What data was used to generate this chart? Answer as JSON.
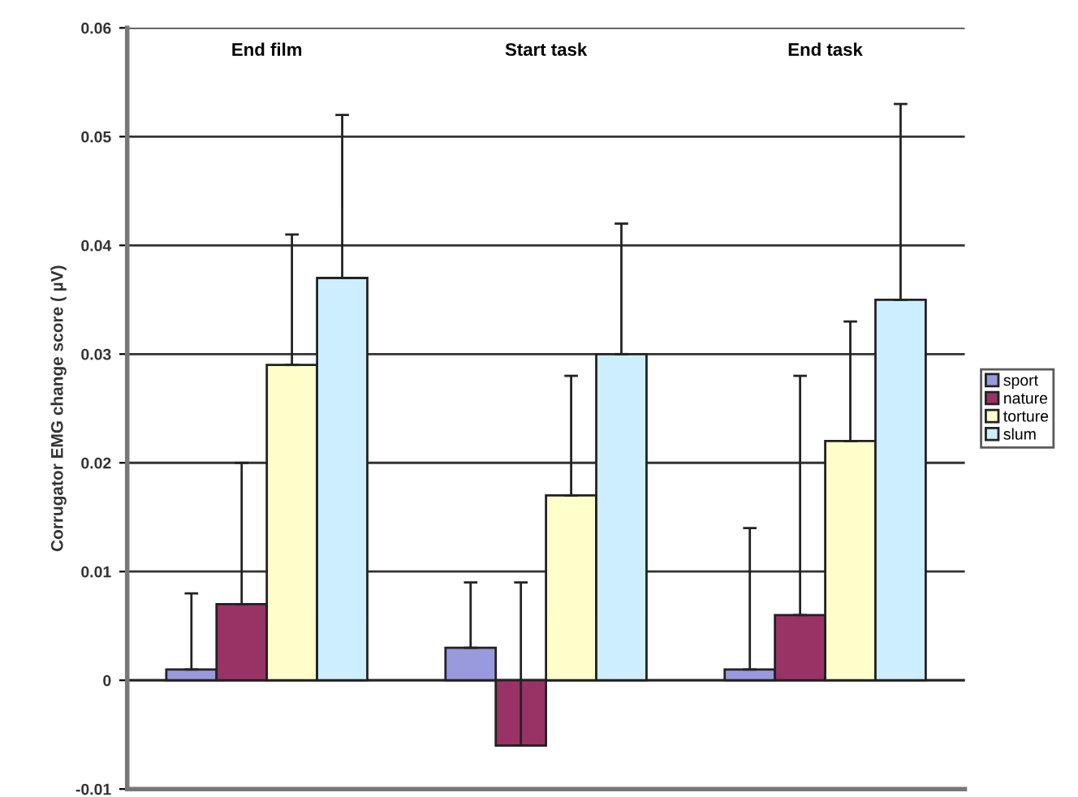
{
  "chart_data": {
    "type": "bar",
    "ylabel": "Corrugator EMG change score ( µV)",
    "categories": [
      "End film",
      "Start task",
      "End task"
    ],
    "series": [
      {
        "name": "sport",
        "color": "#9999dd",
        "values": [
          0.001,
          0.003,
          0.001
        ],
        "errors": [
          [
            0.001,
            0.008
          ],
          [
            0.003,
            0.009
          ],
          [
            0.001,
            0.014
          ]
        ]
      },
      {
        "name": "nature",
        "color": "#993366",
        "values": [
          0.007,
          -0.006,
          0.006
        ],
        "errors": [
          [
            0.007,
            0.02
          ],
          [
            -0.006,
            0.009
          ],
          [
            0.006,
            0.028
          ]
        ]
      },
      {
        "name": "torture",
        "color": "#ffffcc",
        "values": [
          0.029,
          0.017,
          0.022
        ],
        "errors": [
          [
            0.029,
            0.041
          ],
          [
            0.017,
            0.028
          ],
          [
            0.022,
            0.033
          ]
        ]
      },
      {
        "name": "slum",
        "color": "#cceeff",
        "values": [
          0.037,
          0.03,
          0.035
        ],
        "errors": [
          [
            0.037,
            0.052
          ],
          [
            0.03,
            0.042
          ],
          [
            0.035,
            0.053
          ]
        ]
      }
    ],
    "ylim": [
      -0.01,
      0.06
    ],
    "yticks": [
      -0.01,
      0,
      0.01,
      0.02,
      0.03,
      0.04,
      0.05,
      0.06
    ],
    "grid": "y",
    "legend": "right"
  }
}
